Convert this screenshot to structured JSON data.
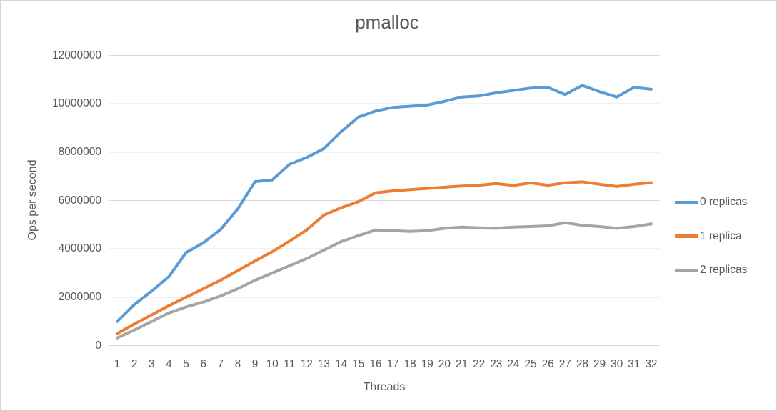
{
  "colors": {
    "text": "#595959",
    "gridline": "#d9d9d9",
    "border": "#d5d3d3",
    "background": "#ffffff"
  },
  "chart_data": {
    "type": "line",
    "title": "pmalloc",
    "xlabel": "Threads",
    "ylabel": "Ops per second",
    "grid": "horizontal",
    "legend_position": "right",
    "ylim": [
      0,
      12000000
    ],
    "ytick_interval": 2000000,
    "ytick_labels": [
      "0",
      "2000000",
      "4000000",
      "6000000",
      "8000000",
      "10000000",
      "12000000"
    ],
    "x": [
      1,
      2,
      3,
      4,
      5,
      6,
      7,
      8,
      9,
      10,
      11,
      12,
      13,
      14,
      15,
      16,
      17,
      18,
      19,
      20,
      21,
      22,
      23,
      24,
      25,
      26,
      27,
      28,
      29,
      30,
      31,
      32
    ],
    "series": [
      {
        "name": "0 replicas",
        "color": "#5b9bd5",
        "values": [
          1000000,
          1700000,
          2250000,
          2850000,
          3850000,
          4250000,
          4800000,
          5650000,
          6780000,
          6850000,
          7500000,
          7780000,
          8150000,
          8850000,
          9450000,
          9700000,
          9850000,
          9900000,
          9950000,
          10100000,
          10280000,
          10320000,
          10450000,
          10550000,
          10650000,
          10680000,
          10380000,
          10760000,
          10500000,
          10280000,
          10680000,
          10600000
        ]
      },
      {
        "name": "1 replica",
        "color": "#ed7d31",
        "values": [
          500000,
          900000,
          1270000,
          1650000,
          2000000,
          2350000,
          2700000,
          3100000,
          3500000,
          3880000,
          4320000,
          4780000,
          5400000,
          5700000,
          5950000,
          6320000,
          6400000,
          6450000,
          6500000,
          6550000,
          6600000,
          6630000,
          6700000,
          6620000,
          6730000,
          6630000,
          6730000,
          6770000,
          6670000,
          6580000,
          6670000,
          6740000
        ]
      },
      {
        "name": "2 replicas",
        "color": "#a5a5a5",
        "values": [
          320000,
          650000,
          1000000,
          1350000,
          1600000,
          1800000,
          2050000,
          2350000,
          2700000,
          3000000,
          3300000,
          3600000,
          3950000,
          4300000,
          4550000,
          4780000,
          4750000,
          4720000,
          4750000,
          4850000,
          4900000,
          4870000,
          4850000,
          4900000,
          4920000,
          4950000,
          5080000,
          4970000,
          4920000,
          4850000,
          4920000,
          5030000
        ]
      }
    ]
  }
}
